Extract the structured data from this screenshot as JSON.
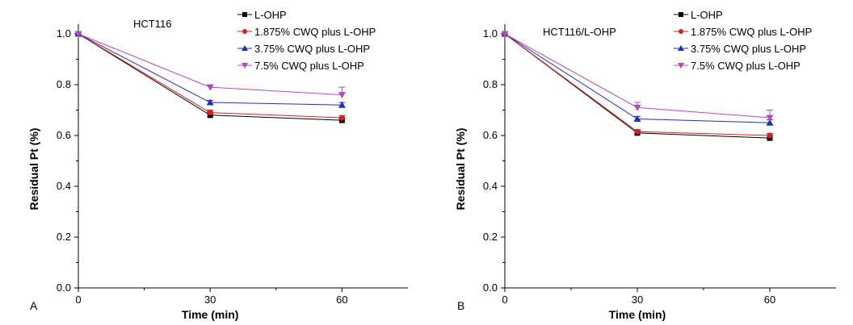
{
  "chart_data": [
    {
      "type": "line",
      "panel_label": "A",
      "title": "HCT116",
      "xlabel": "Time (min)",
      "ylabel": "Residual Pt (%)",
      "x": [
        0,
        30,
        60
      ],
      "x_ticks": [
        "0",
        "30",
        "60"
      ],
      "xlim": [
        0,
        75
      ],
      "ylim": [
        0,
        1.0
      ],
      "y_ticks": [
        "0.0",
        "0.2",
        "0.4",
        "0.6",
        "0.8",
        "1.0"
      ],
      "legend_position": "top-right",
      "grid": false,
      "series": [
        {
          "name": "L-OHP",
          "values": [
            1.0,
            0.68,
            0.66
          ],
          "errors": [
            0,
            0.012,
            0.008
          ],
          "color": "#000000",
          "marker": "square"
        },
        {
          "name": "1.875% CWQ plus L-OHP",
          "values": [
            1.0,
            0.69,
            0.67
          ],
          "errors": [
            0,
            0.01,
            0.008
          ],
          "color": "#d62020",
          "marker": "circle"
        },
        {
          "name": "3.75% CWQ plus L-OHP",
          "values": [
            1.0,
            0.73,
            0.72
          ],
          "errors": [
            0,
            0.008,
            0.01
          ],
          "color": "#1f2fb8",
          "marker": "triangle-up"
        },
        {
          "name": "7.5% CWQ plus L-OHP",
          "values": [
            1.0,
            0.79,
            0.76
          ],
          "errors": [
            0,
            0.01,
            0.03
          ],
          "color": "#b04cb8",
          "marker": "triangle-down"
        }
      ]
    },
    {
      "type": "line",
      "panel_label": "B",
      "title": "HCT116/L-OHP",
      "xlabel": "Time (min)",
      "ylabel": "Residual Pt (%)",
      "x": [
        0,
        30,
        60
      ],
      "x_ticks": [
        "0",
        "30",
        "60"
      ],
      "xlim": [
        0,
        75
      ],
      "ylim": [
        0,
        1.0
      ],
      "y_ticks": [
        "0.0",
        "0.2",
        "0.4",
        "0.6",
        "0.8",
        "1.0"
      ],
      "legend_position": "top-right",
      "grid": false,
      "series": [
        {
          "name": "L-OHP",
          "values": [
            1.0,
            0.61,
            0.59
          ],
          "errors": [
            0,
            0.008,
            0.01
          ],
          "color": "#000000",
          "marker": "square"
        },
        {
          "name": "1.875% CWQ plus L-OHP",
          "values": [
            1.0,
            0.615,
            0.6
          ],
          "errors": [
            0,
            0.008,
            0.008
          ],
          "color": "#d62020",
          "marker": "circle"
        },
        {
          "name": "3.75% CWQ plus L-OHP",
          "values": [
            1.0,
            0.665,
            0.65
          ],
          "errors": [
            0,
            0.01,
            0.012
          ],
          "color": "#1f2fb8",
          "marker": "triangle-up"
        },
        {
          "name": "7.5% CWQ plus L-OHP",
          "values": [
            1.0,
            0.71,
            0.67
          ],
          "errors": [
            0,
            0.02,
            0.03
          ],
          "color": "#b04cb8",
          "marker": "triangle-down"
        }
      ]
    }
  ]
}
